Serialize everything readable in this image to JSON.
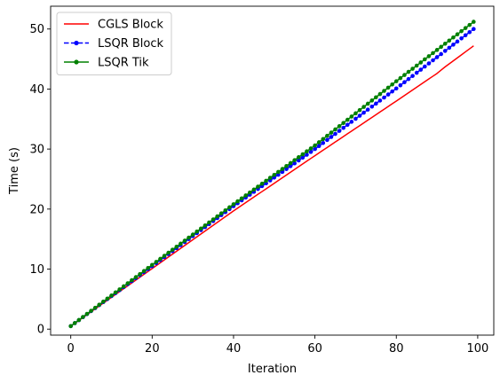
{
  "chart_data": {
    "type": "line",
    "title": "",
    "xlabel": "Iteration",
    "ylabel": "Time (s)",
    "xlim": [
      -4.95,
      103.95
    ],
    "ylim": [
      -1.0,
      53.8
    ],
    "xticks": [
      0,
      20,
      40,
      60,
      80,
      100
    ],
    "yticks": [
      0,
      10,
      20,
      30,
      40,
      50
    ],
    "grid": false,
    "legend_placement": "top-left",
    "series": [
      {
        "name": "CGLS Block",
        "color": "#ff0000",
        "linestyle": "solid",
        "marker": "none",
        "x_start": 0,
        "x_end": 99,
        "points": [
          [
            0,
            0.5
          ],
          [
            20,
            10.1
          ],
          [
            40,
            19.7
          ],
          [
            60,
            28.9
          ],
          [
            80,
            38.0
          ],
          [
            90,
            42.6
          ],
          [
            92,
            43.7
          ],
          [
            99,
            47.2
          ]
        ]
      },
      {
        "name": "LSQR Block",
        "color": "#0000ff",
        "linestyle": "dashed",
        "marker": "dot",
        "x_start": 0,
        "x_end": 99,
        "points": [
          [
            0,
            0.5
          ],
          [
            20,
            10.5
          ],
          [
            40,
            20.5
          ],
          [
            60,
            30.0
          ],
          [
            80,
            40.1
          ],
          [
            99,
            50.0
          ]
        ]
      },
      {
        "name": "LSQR Tik",
        "color": "#008000",
        "linestyle": "solid",
        "marker": "dot",
        "x_start": 0,
        "x_end": 99,
        "points": [
          [
            0,
            0.5
          ],
          [
            20,
            10.7
          ],
          [
            40,
            20.8
          ],
          [
            60,
            30.6
          ],
          [
            80,
            41.3
          ],
          [
            99,
            51.2
          ]
        ]
      }
    ]
  }
}
